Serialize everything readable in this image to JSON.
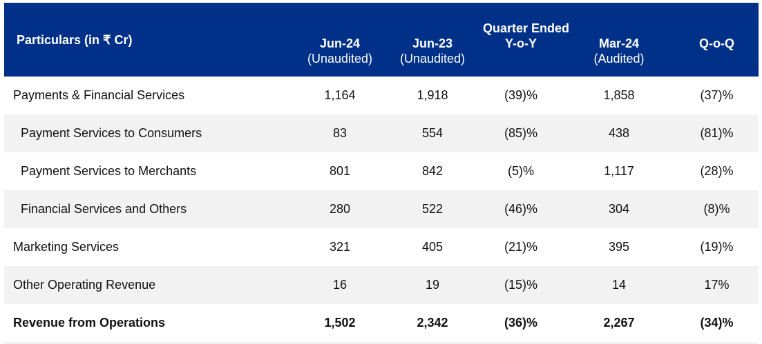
{
  "header": {
    "particulars": "Particulars (in ₹ Cr)",
    "group": "Quarter Ended",
    "columns": [
      {
        "label": "Jun-24",
        "note": "(Unaudited)"
      },
      {
        "label": "Jun-23",
        "note": "(Unaudited)"
      },
      {
        "label": "Y-o-Y",
        "note": ""
      },
      {
        "label": "Mar-24",
        "note": "(Audited)"
      },
      {
        "label": "Q-o-Q",
        "note": ""
      }
    ]
  },
  "rows": [
    {
      "label": "Payments & Financial Services",
      "values": [
        "1,164",
        "1,918",
        "(39)%",
        "1,858",
        "(37)%"
      ]
    },
    {
      "label": "Payment Services to Consumers",
      "values": [
        "83",
        "554",
        "(85)%",
        "438",
        "(81)%"
      ]
    },
    {
      "label": "Payment Services to Merchants",
      "values": [
        "801",
        "842",
        "(5)%",
        "1,117",
        "(28)%"
      ]
    },
    {
      "label": "Financial Services and Others",
      "values": [
        "280",
        "522",
        "(46)%",
        "304",
        "(8)%"
      ]
    },
    {
      "label": "Marketing Services",
      "values": [
        "321",
        "405",
        "(21)%",
        "395",
        "(19)%"
      ]
    },
    {
      "label": "Other Operating Revenue",
      "values": [
        "16",
        "19",
        "(15)%",
        "14",
        "17%"
      ]
    },
    {
      "label": "Revenue from Operations",
      "values": [
        "1,502",
        "2,342",
        "(36)%",
        "2,267",
        "(34)%"
      ]
    }
  ],
  "colors": {
    "header_bg": "#003087",
    "stripe": "#f2f2f2"
  }
}
